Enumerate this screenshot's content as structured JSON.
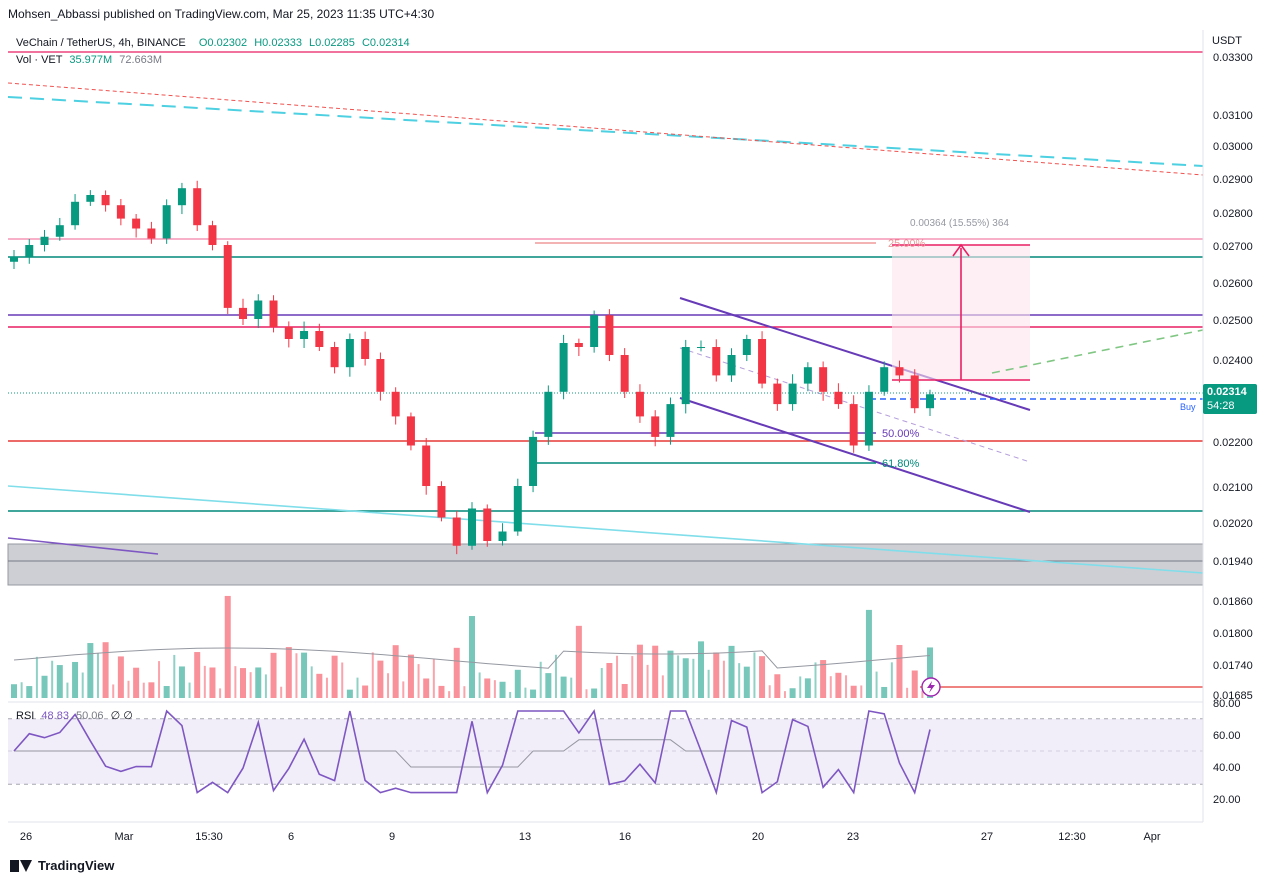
{
  "header": {
    "publisher": "Mohsen_Abbassi published on TradingView.com, Mar 25, 2023 11:35 UTC+4:30",
    "symbol": "VeChain / TetherUS, 4h, BINANCE",
    "open": "O0.02302",
    "high": "H0.02333",
    "low": "L0.02285",
    "close": "C0.02314",
    "volume_label": "Vol · VET",
    "volume_value": "35.977M",
    "volume_ma": "72.663M"
  },
  "rsi_legend": {
    "label": "RSI",
    "value": "48.83",
    "ma": "50.06",
    "extra": "∅ ∅"
  },
  "price_badge": {
    "price": "0.02314",
    "countdown": "54:28",
    "buy": "Buy"
  },
  "branding": {
    "logo_text": "TradingView",
    "logo_icon": "tradingview-logo-icon"
  },
  "annotations": {
    "measure": "0.00364 (15.55%) 364",
    "fib_25": "25.00%",
    "fib_50": "50.00%",
    "fib_618": "61.80%"
  },
  "colors": {
    "up": "#089981",
    "down": "#f23645",
    "channel": "#673ab7",
    "pink": "#e91e63",
    "teal": "#00897b",
    "cyan": "#4dd0e1",
    "purple_line": "#7e57c2",
    "dashed_red": "#ef5350",
    "blue_dash": "#2962ff",
    "green_dash": "#81c784"
  },
  "chart_data": {
    "type": "candlestick",
    "currency": "USDT",
    "price_ticks": [
      "0.03300",
      "0.03100",
      "0.03000",
      "0.02900",
      "0.02800",
      "0.02700",
      "0.02600",
      "0.02500",
      "0.02400",
      "0.02200",
      "0.02100",
      "0.02020",
      "0.01940",
      "0.01860",
      "0.01800",
      "0.01740",
      "0.01685"
    ],
    "rsi_ticks": [
      "80.00",
      "60.00",
      "40.00",
      "20.00"
    ],
    "x_ticks": [
      "26",
      "Mar",
      "15:30",
      "6",
      "9",
      "13",
      "16",
      "20",
      "23",
      "27",
      "12:30",
      "Apr"
    ],
    "horizontal_levels": [
      0.0331,
      0.02725,
      0.02672,
      0.0252,
      0.02485,
      0.02198,
      0.02032
    ],
    "last_price": 0.02314,
    "series": [
      {
        "values": [
          0.02668,
          0.027,
          0.02725,
          0.0276,
          0.0283,
          0.0285,
          0.0282,
          0.0278,
          0.0275,
          0.0272,
          0.0282,
          0.0287,
          0.0276,
          0.027,
          0.0253,
          0.025,
          0.0255,
          0.0248,
          0.0245,
          0.0247,
          0.0243,
          0.0238,
          0.0245,
          0.024,
          0.0232,
          0.0226,
          0.0219,
          0.021,
          0.0203,
          0.0197,
          0.0205,
          0.0198,
          0.02,
          0.021,
          0.0221,
          0.0232,
          0.0244,
          0.0243,
          0.0251,
          0.0241,
          0.0232,
          0.0226,
          0.0221,
          0.0229,
          0.0243,
          0.0243,
          0.0236,
          0.0241,
          0.0245,
          0.0234,
          0.0229,
          0.0234,
          0.0238,
          0.0232,
          0.0229,
          0.0219,
          0.0232,
          0.0238,
          0.0236,
          0.0228,
          0.02314
        ]
      }
    ]
  }
}
